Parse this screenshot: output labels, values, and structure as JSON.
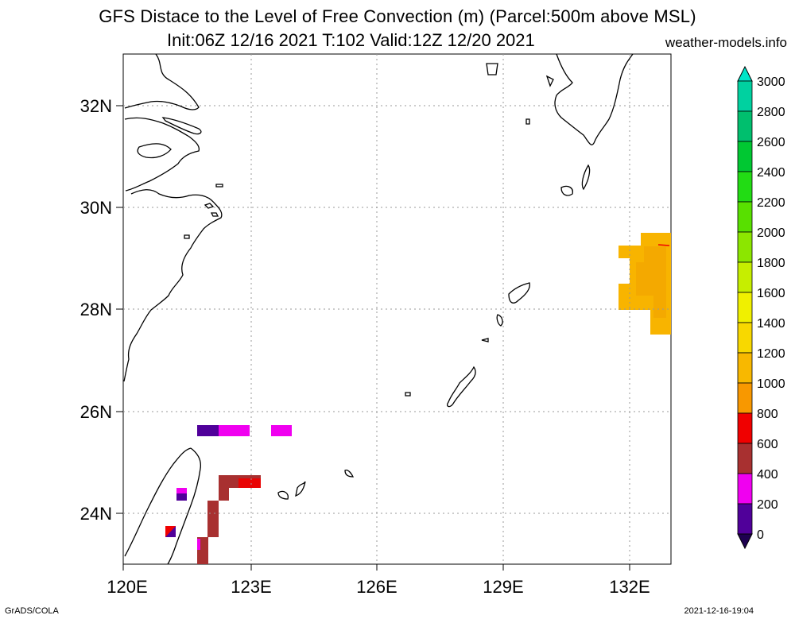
{
  "title_line1": "GFS Distace to the Level of Free Convection (m) (Parcel:500m above MSL)",
  "title_line2": "Init:06Z 12/16 2021 T:102 Valid:12Z 12/20 2021",
  "site": "weather-models.info",
  "footer_left": "GrADS/COLA",
  "footer_right": "2021-12-16-19:04",
  "lat_labels": [
    "32N",
    "30N",
    "28N",
    "26N",
    "24N"
  ],
  "lon_labels": [
    "120E",
    "123E",
    "126E",
    "129E",
    "132E"
  ],
  "colorbar": {
    "labels": [
      "3000",
      "2800",
      "2600",
      "2400",
      "2200",
      "2000",
      "1800",
      "1600",
      "1400",
      "1200",
      "1000",
      "800",
      "600",
      "400",
      "200",
      "0"
    ],
    "colors": [
      "#00e5c8",
      "#00d1a0",
      "#00bf6e",
      "#00c832",
      "#22dc14",
      "#58e000",
      "#8ce600",
      "#c6ee00",
      "#f0f000",
      "#f8d800",
      "#f8b800",
      "#f89800",
      "#f00000",
      "#a83030",
      "#f000f0",
      "#50009a",
      "#1e0050"
    ]
  },
  "field_colors": {
    "orange": "#f8b400",
    "dark_orange": "#f0a000",
    "purple": "#50009a",
    "magenta": "#f000f0",
    "brown": "#a83030",
    "red": "#f00000"
  }
}
